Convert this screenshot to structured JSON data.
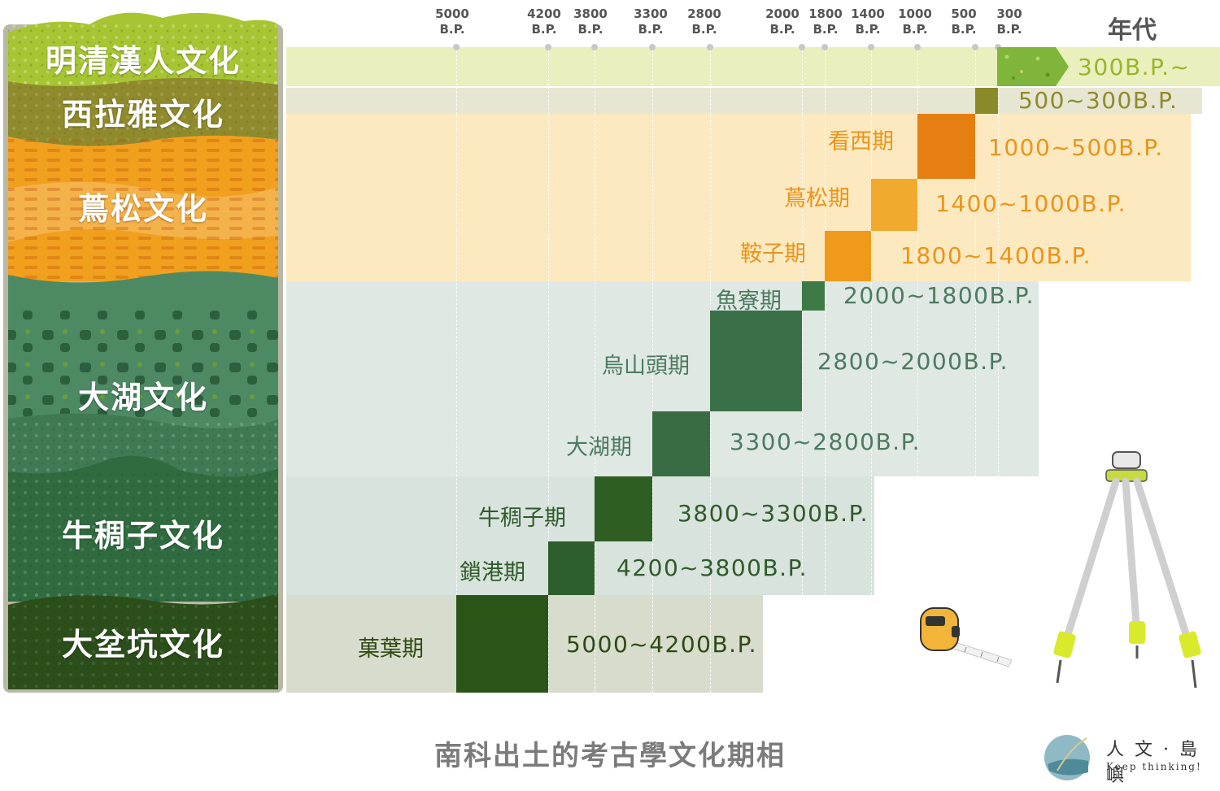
{
  "axis": {
    "era_label": "年代",
    "ticks": [
      {
        "year": "5000",
        "unit": "B.P."
      },
      {
        "year": "4200",
        "unit": "B.P."
      },
      {
        "year": "3800",
        "unit": "B.P."
      },
      {
        "year": "3300",
        "unit": "B.P."
      },
      {
        "year": "2800",
        "unit": "B.P."
      },
      {
        "year": "2000",
        "unit": "B.P."
      },
      {
        "year": "1800",
        "unit": "B.P."
      },
      {
        "year": "1400",
        "unit": "B.P."
      },
      {
        "year": "1000",
        "unit": "B.P."
      },
      {
        "year": "500",
        "unit": "B.P."
      },
      {
        "year": "300",
        "unit": "B.P."
      }
    ]
  },
  "cultures": [
    {
      "name": "明清漢人文化",
      "color": "#a7c532"
    },
    {
      "name": "西拉雅文化",
      "color": "#8f8a2c"
    },
    {
      "name": "蔦松文化",
      "color": "#f0a01c"
    },
    {
      "name": "大湖文化",
      "color": "#3f7a55"
    },
    {
      "name": "牛稠子文化",
      "color": "#2f6b3f"
    },
    {
      "name": "大坌坑文化",
      "color": "#2b4e1a"
    }
  ],
  "phases": [
    {
      "name": "",
      "range": "300B.P.~",
      "color": "#7fb53a",
      "text_color": "#98b52a"
    },
    {
      "name": "",
      "range": "500~300B.P.",
      "color": "#8a8a2a",
      "text_color": "#8f8a2c"
    },
    {
      "name": "看西期",
      "range": "1000~500B.P.",
      "color": "#e57f12",
      "text_color": "#e8951c"
    },
    {
      "name": "蔦松期",
      "range": "1400~1000B.P.",
      "color": "#f2aa2e",
      "text_color": "#e8951c"
    },
    {
      "name": "鞍子期",
      "range": "1800~1400B.P.",
      "color": "#ef9a1a",
      "text_color": "#e8951c"
    },
    {
      "name": "魚寮期",
      "range": "2000~1800B.P.",
      "color": "#3d7a45",
      "text_color": "#4c7a60"
    },
    {
      "name": "烏山頭期",
      "range": "2800~2000B.P.",
      "color": "#3a7048",
      "text_color": "#4c7a60"
    },
    {
      "name": "大湖期",
      "range": "3300~2800B.P.",
      "color": "#3a6c44",
      "text_color": "#4c7a60"
    },
    {
      "name": "牛稠子期",
      "range": "3800~3300B.P.",
      "color": "#2f5e23",
      "text_color": "#2f5a2a"
    },
    {
      "name": "鎖港期",
      "range": "4200~3800B.P.",
      "color": "#2e5e2c",
      "text_color": "#2f5a2a"
    },
    {
      "name": "菓葉期",
      "range": "5000~4200B.P.",
      "color": "#2b5517",
      "text_color": "#2f4a14"
    }
  ],
  "footer": {
    "title": "南科出土的考古學文化期相"
  },
  "logo": {
    "brand": "人 文 · 島 嶼",
    "tagline": "Keep thinking!"
  }
}
